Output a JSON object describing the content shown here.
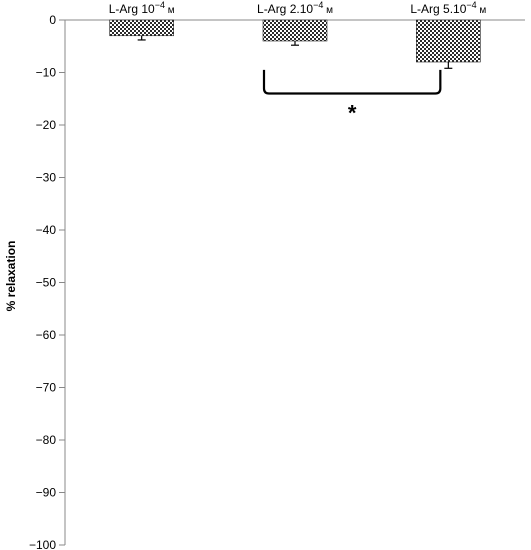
{
  "chart_data": {
    "type": "bar",
    "ylabel": "% relaxation",
    "ylim": [
      -100,
      0
    ],
    "yticks": [
      0,
      -10,
      -20,
      -30,
      -40,
      -50,
      -60,
      -70,
      -80,
      -90,
      -100
    ],
    "grid": false,
    "categories": [
      {
        "base": "L-Arg 10",
        "exp": "−4",
        "unit": " м"
      },
      {
        "base": "L-Arg 2.10",
        "exp": "−4",
        "unit": " м"
      },
      {
        "base": "L-Arg 5.10",
        "exp": "−4",
        "unit": " м"
      }
    ],
    "values": [
      -3,
      -4,
      -8
    ],
    "errors": [
      0.8,
      0.8,
      1.2
    ],
    "bar_fill": "#3a3a3a",
    "significance": {
      "between": [
        1,
        2
      ],
      "label": "*"
    }
  }
}
